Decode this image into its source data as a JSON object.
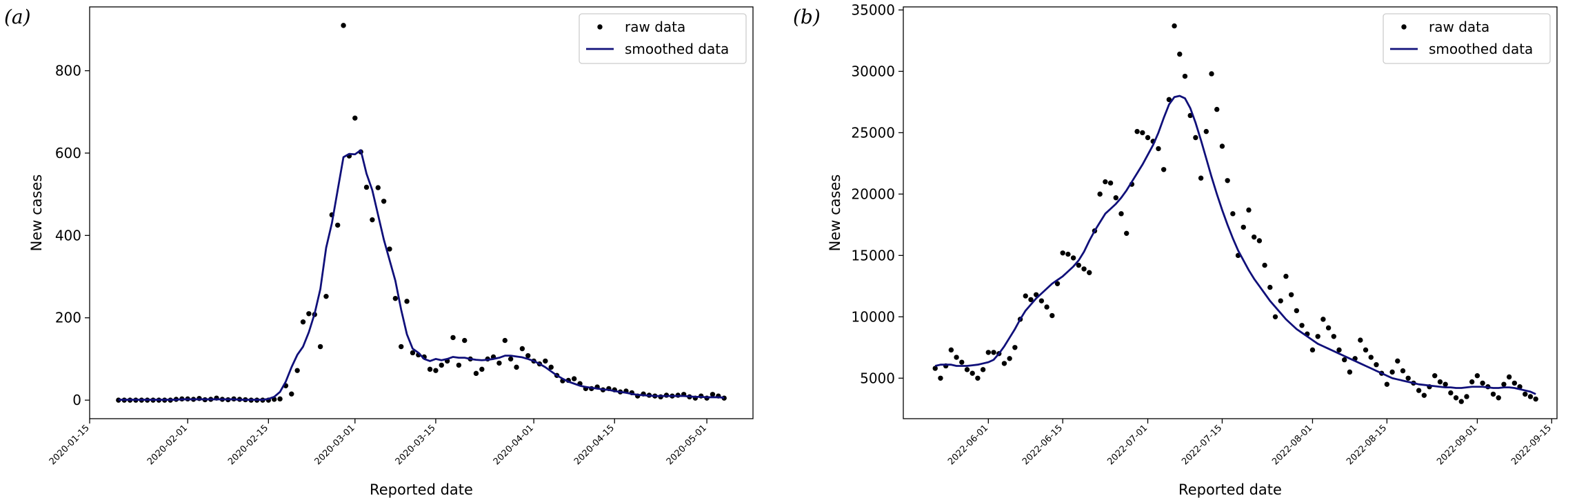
{
  "chart_data": [
    {
      "type": "line",
      "panel_label": "(a)",
      "x_label": "Reported date",
      "y_label": "New cases",
      "legend": "upper right",
      "xlim": [
        "2020-01-15",
        "2020-05-09"
      ],
      "ylim": [
        -45,
        955
      ],
      "xticks": [
        "2020-01-15",
        "2020-02-01",
        "2020-02-15",
        "2020-03-01",
        "2020-03-15",
        "2020-04-01",
        "2020-04-15",
        "2020-05-01"
      ],
      "yticks": [
        0,
        200,
        400,
        600,
        800
      ],
      "x": [
        "2020-01-20",
        "2020-01-21",
        "2020-01-22",
        "2020-01-23",
        "2020-01-24",
        "2020-01-25",
        "2020-01-26",
        "2020-01-27",
        "2020-01-28",
        "2020-01-29",
        "2020-01-30",
        "2020-01-31",
        "2020-02-01",
        "2020-02-02",
        "2020-02-03",
        "2020-02-04",
        "2020-02-05",
        "2020-02-06",
        "2020-02-07",
        "2020-02-08",
        "2020-02-09",
        "2020-02-10",
        "2020-02-11",
        "2020-02-12",
        "2020-02-13",
        "2020-02-14",
        "2020-02-15",
        "2020-02-16",
        "2020-02-17",
        "2020-02-18",
        "2020-02-19",
        "2020-02-20",
        "2020-02-21",
        "2020-02-22",
        "2020-02-23",
        "2020-02-24",
        "2020-02-25",
        "2020-02-26",
        "2020-02-27",
        "2020-02-28",
        "2020-02-29",
        "2020-03-01",
        "2020-03-02",
        "2020-03-03",
        "2020-03-04",
        "2020-03-05",
        "2020-03-06",
        "2020-03-07",
        "2020-03-08",
        "2020-03-09",
        "2020-03-10",
        "2020-03-11",
        "2020-03-12",
        "2020-03-13",
        "2020-03-14",
        "2020-03-15",
        "2020-03-16",
        "2020-03-17",
        "2020-03-18",
        "2020-03-19",
        "2020-03-20",
        "2020-03-21",
        "2020-03-22",
        "2020-03-23",
        "2020-03-24",
        "2020-03-25",
        "2020-03-26",
        "2020-03-27",
        "2020-03-28",
        "2020-03-29",
        "2020-03-30",
        "2020-03-31",
        "2020-04-01",
        "2020-04-02",
        "2020-04-03",
        "2020-04-04",
        "2020-04-05",
        "2020-04-06",
        "2020-04-07",
        "2020-04-08",
        "2020-04-09",
        "2020-04-10",
        "2020-04-11",
        "2020-04-12",
        "2020-04-13",
        "2020-04-14",
        "2020-04-15",
        "2020-04-16",
        "2020-04-17",
        "2020-04-18",
        "2020-04-19",
        "2020-04-20",
        "2020-04-21",
        "2020-04-22",
        "2020-04-23",
        "2020-04-24",
        "2020-04-25",
        "2020-04-26",
        "2020-04-27",
        "2020-04-28",
        "2020-04-29",
        "2020-04-30",
        "2020-05-01",
        "2020-05-02",
        "2020-05-03",
        "2020-05-04"
      ],
      "series": [
        {
          "name": "raw data",
          "style": "markers",
          "color": "#000000",
          "values": [
            0,
            0,
            0,
            0,
            0,
            0,
            0,
            0,
            0,
            0,
            2,
            3,
            3,
            2,
            4,
            1,
            2,
            5,
            2,
            1,
            3,
            2,
            1,
            0,
            0,
            0,
            0,
            2,
            3,
            35,
            15,
            72,
            190,
            210,
            208,
            130,
            252,
            450,
            425,
            910,
            593,
            685,
            603,
            517,
            438,
            516,
            483,
            367,
            247,
            130,
            240,
            115,
            110,
            105,
            75,
            72,
            85,
            95,
            152,
            85,
            145,
            100,
            65,
            75,
            100,
            105,
            90,
            145,
            100,
            80,
            125,
            108,
            95,
            88,
            95,
            80,
            60,
            47,
            48,
            52,
            40,
            28,
            28,
            32,
            25,
            28,
            25,
            20,
            22,
            18,
            10,
            15,
            12,
            10,
            8,
            12,
            10,
            12,
            14,
            8,
            5,
            10,
            5,
            14,
            10,
            5
          ]
        },
        {
          "name": "smoothed data",
          "style": "line",
          "color": "#10107a",
          "values": [
            1,
            1,
            1,
            1,
            1,
            1,
            1,
            1,
            1,
            1,
            1,
            2,
            2,
            2,
            2,
            2,
            2,
            2,
            2,
            2,
            2,
            1,
            1,
            1,
            1,
            1,
            3,
            8,
            20,
            45,
            80,
            110,
            130,
            165,
            210,
            270,
            370,
            430,
            510,
            590,
            598,
            597,
            607,
            550,
            510,
            450,
            390,
            340,
            290,
            220,
            160,
            125,
            115,
            100,
            95,
            100,
            97,
            100,
            105,
            103,
            103,
            100,
            98,
            97,
            98,
            100,
            103,
            108,
            108,
            106,
            104,
            100,
            95,
            88,
            80,
            70,
            60,
            52,
            45,
            40,
            35,
            32,
            30,
            28,
            26,
            25,
            22,
            20,
            18,
            15,
            13,
            12,
            11,
            10,
            10,
            10,
            10,
            10,
            10,
            9,
            8,
            8,
            7,
            7,
            7,
            6
          ]
        }
      ]
    },
    {
      "type": "line",
      "panel_label": "(b)",
      "x_label": "Reported date",
      "y_label": "New cases",
      "legend": "upper right",
      "xlim": [
        "2022-05-16",
        "2022-09-16"
      ],
      "ylim": [
        1700,
        35250
      ],
      "xticks": [
        "2022-06-01",
        "2022-06-15",
        "2022-07-01",
        "2022-07-15",
        "2022-08-01",
        "2022-08-15",
        "2022-09-01",
        "2022-09-15"
      ],
      "yticks": [
        5000,
        10000,
        15000,
        20000,
        25000,
        30000,
        35000
      ],
      "x": [
        "2022-05-22",
        "2022-05-23",
        "2022-05-24",
        "2022-05-25",
        "2022-05-26",
        "2022-05-27",
        "2022-05-28",
        "2022-05-29",
        "2022-05-30",
        "2022-05-31",
        "2022-06-01",
        "2022-06-02",
        "2022-06-03",
        "2022-06-04",
        "2022-06-05",
        "2022-06-06",
        "2022-06-07",
        "2022-06-08",
        "2022-06-09",
        "2022-06-10",
        "2022-06-11",
        "2022-06-12",
        "2022-06-13",
        "2022-06-14",
        "2022-06-15",
        "2022-06-16",
        "2022-06-17",
        "2022-06-18",
        "2022-06-19",
        "2022-06-20",
        "2022-06-21",
        "2022-06-22",
        "2022-06-23",
        "2022-06-24",
        "2022-06-25",
        "2022-06-26",
        "2022-06-27",
        "2022-06-28",
        "2022-06-29",
        "2022-06-30",
        "2022-07-01",
        "2022-07-02",
        "2022-07-03",
        "2022-07-04",
        "2022-07-05",
        "2022-07-06",
        "2022-07-07",
        "2022-07-08",
        "2022-07-09",
        "2022-07-10",
        "2022-07-11",
        "2022-07-12",
        "2022-07-13",
        "2022-07-14",
        "2022-07-15",
        "2022-07-16",
        "2022-07-17",
        "2022-07-18",
        "2022-07-19",
        "2022-07-20",
        "2022-07-21",
        "2022-07-22",
        "2022-07-23",
        "2022-07-24",
        "2022-07-25",
        "2022-07-26",
        "2022-07-27",
        "2022-07-28",
        "2022-07-29",
        "2022-07-30",
        "2022-07-31",
        "2022-08-01",
        "2022-08-02",
        "2022-08-03",
        "2022-08-04",
        "2022-08-05",
        "2022-08-06",
        "2022-08-07",
        "2022-08-08",
        "2022-08-09",
        "2022-08-10",
        "2022-08-11",
        "2022-08-12",
        "2022-08-13",
        "2022-08-14",
        "2022-08-15",
        "2022-08-16",
        "2022-08-17",
        "2022-08-18",
        "2022-08-19",
        "2022-08-20",
        "2022-08-21",
        "2022-08-22",
        "2022-08-23",
        "2022-08-24",
        "2022-08-25",
        "2022-08-26",
        "2022-08-27",
        "2022-08-28",
        "2022-08-29",
        "2022-08-30",
        "2022-08-31",
        "2022-09-01",
        "2022-09-02",
        "2022-09-03",
        "2022-09-04",
        "2022-09-05",
        "2022-09-06",
        "2022-09-07",
        "2022-09-08",
        "2022-09-09",
        "2022-09-10",
        "2022-09-11",
        "2022-09-12"
      ],
      "series": [
        {
          "name": "raw data",
          "style": "markers",
          "color": "#000000",
          "values": [
            5800,
            5000,
            6000,
            7300,
            6700,
            6300,
            5700,
            5400,
            5000,
            5700,
            7100,
            7100,
            7000,
            6200,
            6600,
            7500,
            9800,
            11700,
            11400,
            11800,
            11300,
            10800,
            10100,
            12700,
            15200,
            15100,
            14800,
            14200,
            13900,
            13600,
            17000,
            20000,
            21000,
            20900,
            19700,
            18400,
            16800,
            20800,
            25100,
            25000,
            24600,
            24300,
            23700,
            22000,
            27700,
            33700,
            31400,
            29600,
            26400,
            24600,
            21300,
            25100,
            29800,
            26900,
            23900,
            21100,
            18400,
            15000,
            17300,
            18700,
            16500,
            16200,
            14200,
            12400,
            10000,
            11300,
            13300,
            11800,
            10500,
            9300,
            8600,
            7300,
            8400,
            9800,
            9100,
            8400,
            7300,
            6500,
            5500,
            6600,
            8100,
            7300,
            6700,
            6100,
            5400,
            4500,
            5500,
            6400,
            5600,
            5000,
            4600,
            4000,
            3600,
            4300,
            5200,
            4700,
            4500,
            3800,
            3400,
            3100,
            3500,
            4700,
            5200,
            4600,
            4300,
            3700,
            3400,
            4500,
            5100,
            4600,
            4300,
            3700,
            3500,
            3300
          ]
        },
        {
          "name": "smoothed data",
          "style": "line",
          "color": "#10107a",
          "values": [
            6000,
            6100,
            6100,
            6100,
            6000,
            6000,
            6000,
            6050,
            6100,
            6200,
            6300,
            6500,
            7000,
            7600,
            8300,
            9000,
            9800,
            10500,
            11000,
            11500,
            11900,
            12300,
            12700,
            13000,
            13300,
            13700,
            14100,
            14600,
            15300,
            16200,
            17000,
            17700,
            18400,
            18800,
            19200,
            19700,
            20300,
            21000,
            21700,
            22400,
            23200,
            24000,
            25000,
            26200,
            27300,
            27900,
            28000,
            27800,
            27000,
            25800,
            24400,
            22900,
            21400,
            20000,
            18700,
            17500,
            16400,
            15400,
            14600,
            13800,
            13100,
            12500,
            11900,
            11300,
            10800,
            10300,
            9800,
            9400,
            9000,
            8700,
            8400,
            8100,
            7800,
            7600,
            7400,
            7200,
            7000,
            6800,
            6600,
            6400,
            6200,
            6000,
            5800,
            5600,
            5400,
            5200,
            5000,
            4900,
            4800,
            4700,
            4600,
            4500,
            4450,
            4400,
            4350,
            4300,
            4250,
            4250,
            4200,
            4200,
            4250,
            4300,
            4300,
            4300,
            4250,
            4200,
            4200,
            4250,
            4250,
            4200,
            4100,
            4000,
            3900,
            3700
          ]
        }
      ]
    }
  ]
}
